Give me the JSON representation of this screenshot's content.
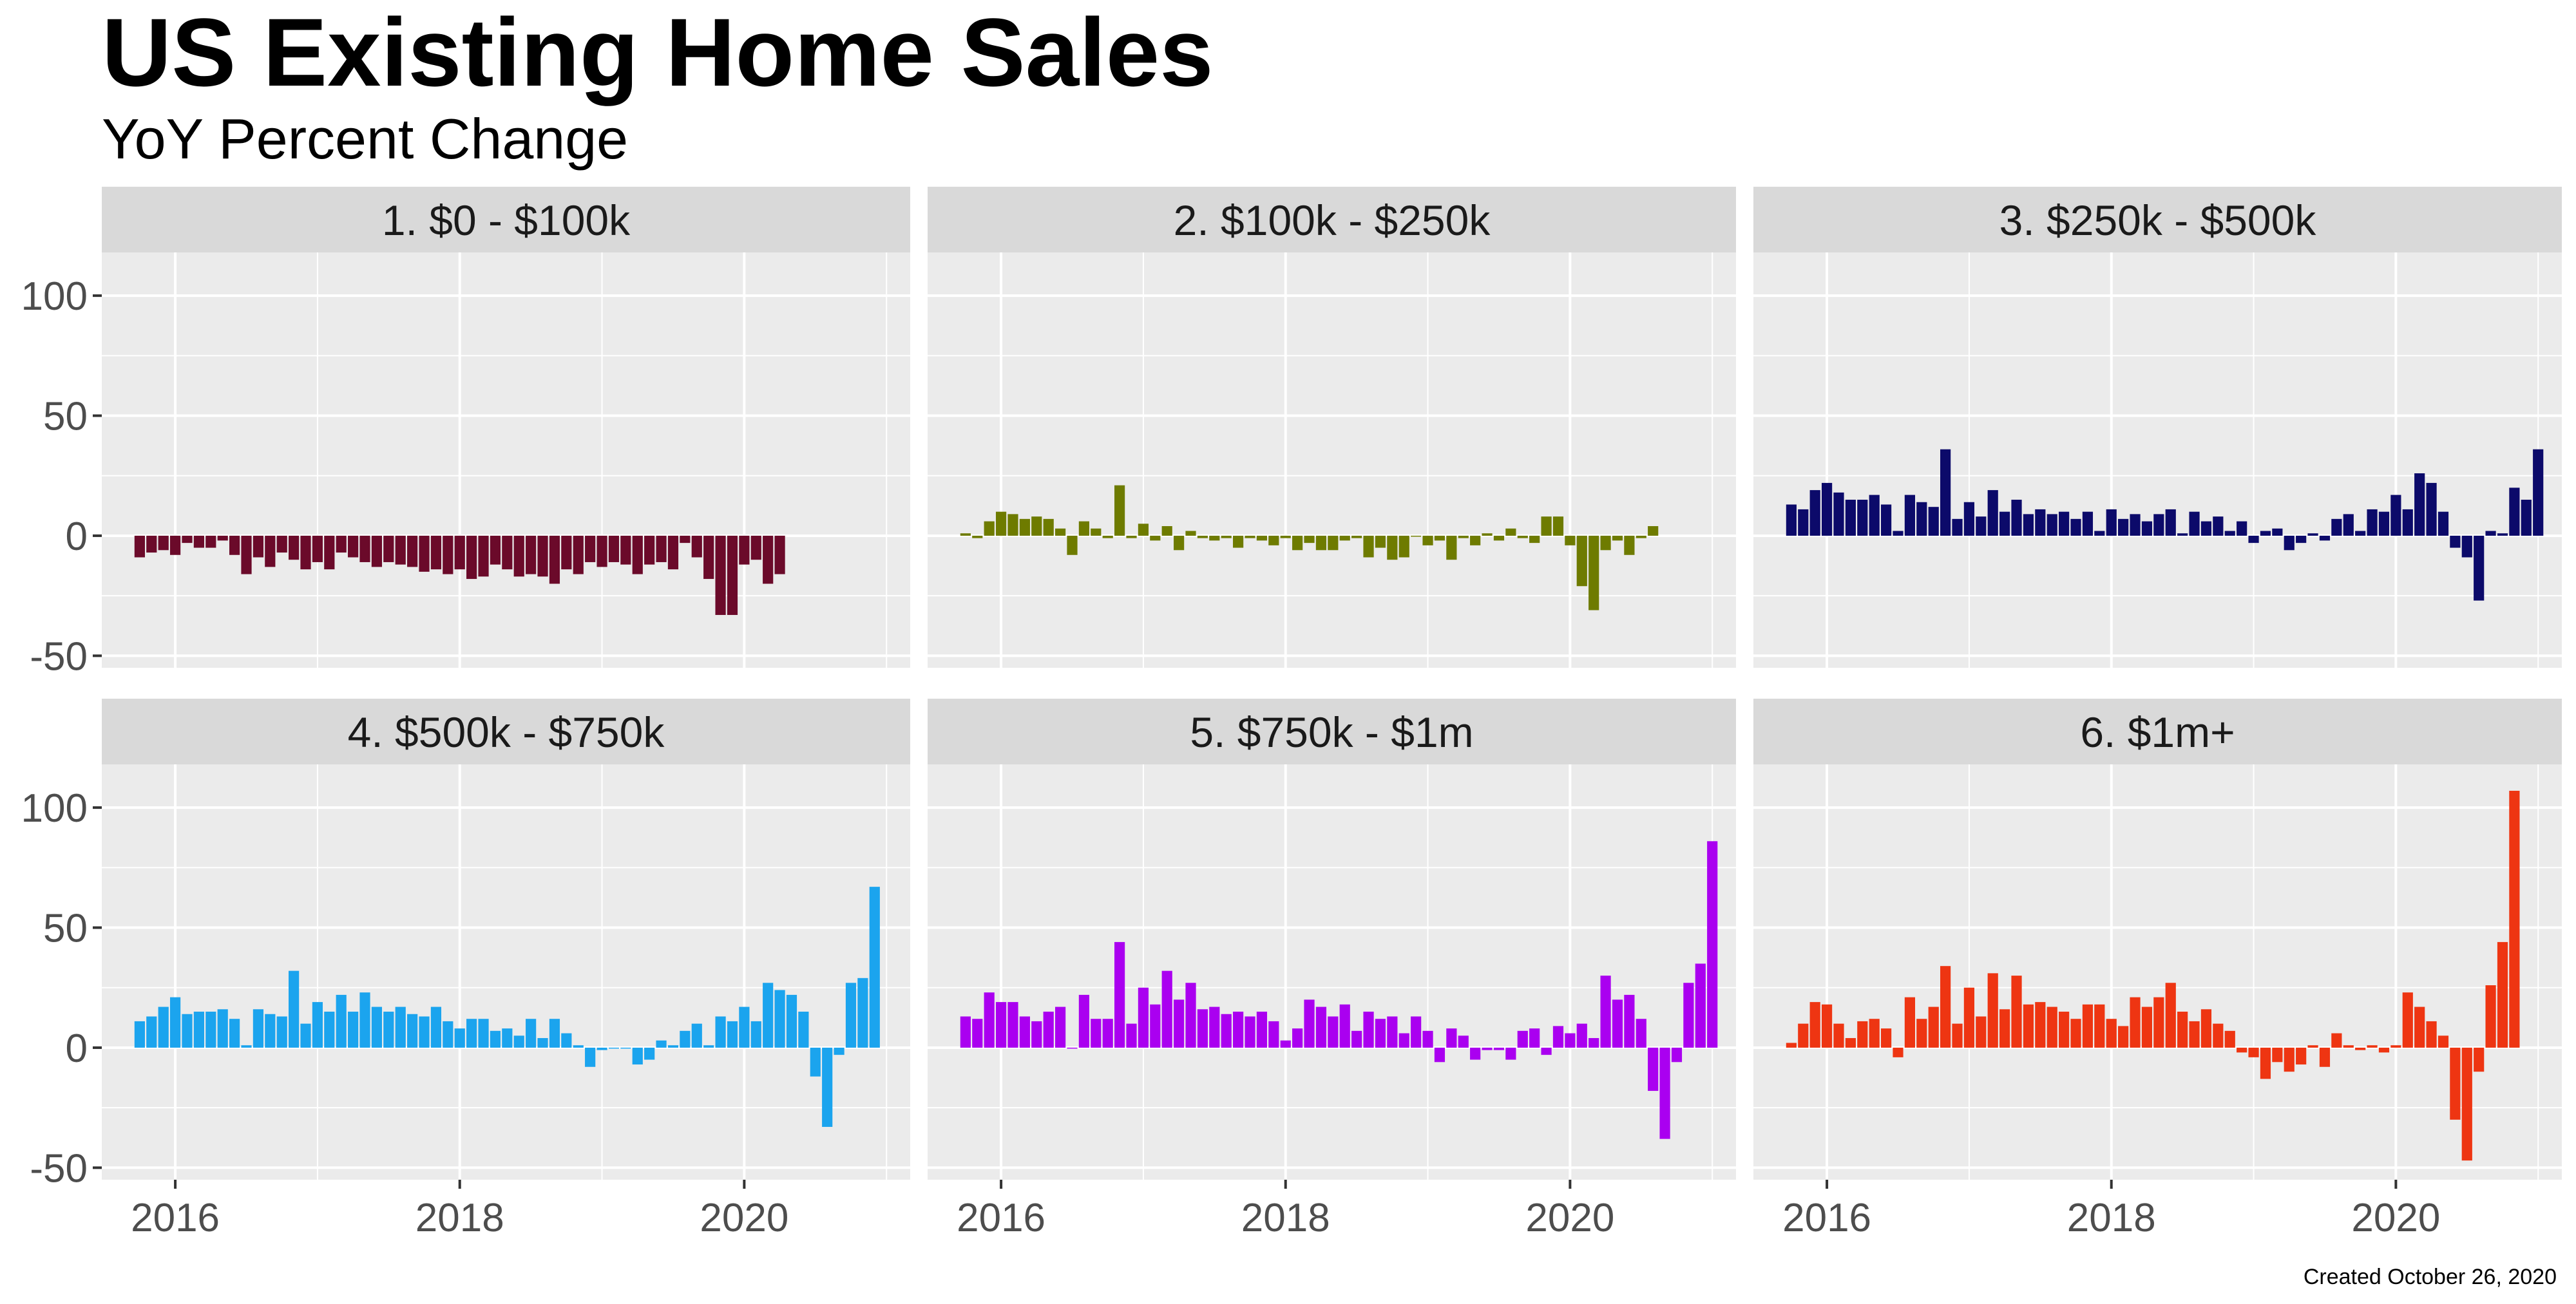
{
  "title": "US Existing Home Sales",
  "subtitle": "YoY Percent Change",
  "caption": "Created October 26, 2020",
  "chart_data": {
    "type": "bar",
    "layout": "faceted 2 rows x 3 columns, shared axes",
    "x_start": "2015-10",
    "x_frequency": "monthly",
    "x_ticks": [
      "2016",
      "2018",
      "2020"
    ],
    "y_ticks": [
      "-50",
      "0",
      "50",
      "100"
    ],
    "ylim": [
      -55,
      118
    ],
    "grid": true,
    "facets": [
      {
        "label": "1. $0 - $100k",
        "color": "#6B0A2A",
        "values": [
          -9,
          -7,
          -6,
          -8,
          -3,
          -5,
          -5,
          -2,
          -8,
          -16,
          -9,
          -13,
          -7,
          -10,
          -14,
          -11,
          -14,
          -7,
          -9,
          -11,
          -13,
          -11,
          -12,
          -13,
          -15,
          -14,
          -16,
          -14,
          -18,
          -17,
          -12,
          -14,
          -17,
          -16,
          -17,
          -20,
          -14,
          -16,
          -11,
          -13,
          -11,
          -12,
          -16,
          -12,
          -11,
          -14,
          -3,
          -9,
          -18,
          -33,
          -33,
          -12,
          -10,
          -20,
          -16
        ]
      },
      {
        "label": "2. $100k - $250k",
        "color": "#6E7B00",
        "values": [
          1,
          -1,
          6,
          10,
          9,
          7,
          8,
          7,
          3,
          -8,
          6,
          3,
          -1,
          21,
          -1,
          5,
          -2,
          4,
          -6,
          2,
          -1,
          -2,
          -1,
          -5,
          -1,
          -2,
          -4,
          -1,
          -6,
          -3,
          -6,
          -6,
          -2,
          -1,
          -9,
          -5,
          -10,
          -9,
          0,
          -4,
          -2,
          -10,
          -1,
          -4,
          1,
          -2,
          3,
          -1,
          -3,
          8,
          8,
          -4,
          -21,
          -31,
          -6,
          -2,
          -8,
          -1,
          4
        ]
      },
      {
        "label": "3. $250k - $500k",
        "color": "#0C0A6A",
        "values": [
          13,
          11,
          19,
          22,
          18,
          15,
          15,
          17,
          13,
          2,
          17,
          14,
          12,
          36,
          7,
          14,
          8,
          19,
          10,
          15,
          9,
          11,
          9,
          10,
          7,
          10,
          2,
          11,
          7,
          9,
          6,
          9,
          11,
          1,
          10,
          6,
          8,
          2,
          6,
          -3,
          2,
          3,
          -6,
          -3,
          1,
          -2,
          7,
          9,
          2,
          11,
          10,
          17,
          11,
          26,
          22,
          10,
          -5,
          -9,
          -27,
          2,
          1,
          20,
          15,
          36
        ]
      },
      {
        "label": "4. $500k - $750k",
        "color": "#1BA4EE",
        "values": [
          11,
          13,
          17,
          21,
          14,
          15,
          15,
          16,
          12,
          1,
          16,
          14,
          13,
          32,
          10,
          19,
          15,
          22,
          15,
          23,
          17,
          15,
          17,
          14,
          13,
          17,
          11,
          8,
          12,
          12,
          7,
          8,
          5,
          12,
          4,
          12,
          6,
          1,
          -8,
          -1,
          0,
          0,
          -7,
          -5,
          3,
          1,
          7,
          10,
          1,
          13,
          11,
          17,
          11,
          27,
          24,
          22,
          15,
          -12,
          -33,
          -3,
          27,
          29,
          67
        ]
      },
      {
        "label": "5. $750k - $1m",
        "color": "#AA00F0",
        "values": [
          13,
          12,
          23,
          19,
          19,
          13,
          11,
          15,
          17,
          0,
          22,
          12,
          12,
          44,
          10,
          25,
          18,
          32,
          20,
          27,
          16,
          17,
          14,
          15,
          13,
          15,
          11,
          3,
          8,
          20,
          17,
          13,
          18,
          7,
          15,
          12,
          13,
          6,
          13,
          7,
          -6,
          8,
          5,
          -5,
          -1,
          -1,
          -5,
          7,
          8,
          -3,
          9,
          6,
          10,
          4,
          30,
          20,
          22,
          12,
          -18,
          -38,
          -6,
          27,
          35,
          86
        ]
      },
      {
        "label": "6. $1m+",
        "color": "#EE3512",
        "values": [
          2,
          10,
          19,
          18,
          10,
          4,
          11,
          12,
          8,
          -4,
          21,
          12,
          17,
          34,
          10,
          25,
          13,
          31,
          16,
          30,
          18,
          19,
          17,
          15,
          12,
          18,
          18,
          12,
          9,
          21,
          17,
          21,
          27,
          15,
          11,
          16,
          10,
          7,
          -2,
          -4,
          -13,
          -6,
          -10,
          -7,
          1,
          -8,
          6,
          1,
          -1,
          1,
          -2,
          1,
          23,
          17,
          11,
          5,
          -30,
          -47,
          -10,
          26,
          44,
          107
        ]
      }
    ]
  }
}
